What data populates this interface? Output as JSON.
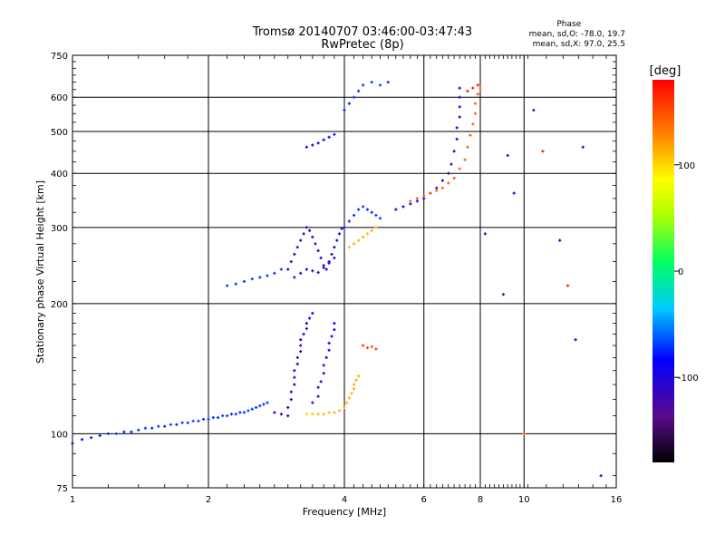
{
  "chart_data": {
    "type": "scatter",
    "title": "Tromsø 20140707 03:46:00-03:47:43",
    "subtitle": "RwPretec (8p)",
    "xlabel": "Frequency [MHz]",
    "ylabel": "Stationary phase Virtual Height [km]",
    "x_scale": "log",
    "y_scale": "log",
    "xlim": [
      1,
      16
    ],
    "ylim": [
      75,
      750
    ],
    "x_ticks": [
      1,
      2,
      4,
      6,
      8,
      10,
      16
    ],
    "x_tick_labels": [
      "1",
      "2",
      "4",
      "6",
      "8",
      "10",
      "16"
    ],
    "y_ticks": [
      75,
      100,
      200,
      300,
      400,
      500,
      600,
      750
    ],
    "y_tick_labels": [
      "75",
      "100",
      "200",
      "300",
      "400",
      "500",
      "600",
      "750"
    ],
    "grid": true,
    "stats": {
      "header": "Phase",
      "line_o": "mean, sd,O: -78.0, 19.7",
      "line_x": "mean, sd,X:  97.0, 25.5"
    },
    "colorbar": {
      "label": "[deg]",
      "range": [
        -180,
        180
      ],
      "ticks": [
        100,
        0,
        -100
      ],
      "tick_labels": [
        "100",
        "0",
        "-100"
      ],
      "colormap": "rainbow"
    },
    "series": [
      {
        "points": [
          [
            1.0,
            95,
            -80
          ],
          [
            1.05,
            97,
            -85
          ],
          [
            1.1,
            98,
            -75
          ],
          [
            1.15,
            99,
            -82
          ],
          [
            1.2,
            100,
            -78
          ],
          [
            1.25,
            100,
            -70
          ],
          [
            1.3,
            101,
            -76
          ],
          [
            1.35,
            101,
            -80
          ],
          [
            1.4,
            102,
            -74
          ],
          [
            1.45,
            103,
            -72
          ],
          [
            1.5,
            103,
            -78
          ],
          [
            1.55,
            104,
            -70
          ],
          [
            1.6,
            104,
            -76
          ],
          [
            1.65,
            105,
            -68
          ],
          [
            1.7,
            105,
            -74
          ],
          [
            1.75,
            106,
            -70
          ],
          [
            1.8,
            106,
            -72
          ],
          [
            1.85,
            107,
            -66
          ],
          [
            1.9,
            107,
            -70
          ],
          [
            1.95,
            108,
            -75
          ],
          [
            2.0,
            108,
            -72
          ],
          [
            2.05,
            109,
            -70
          ],
          [
            2.1,
            109,
            -74
          ],
          [
            2.15,
            110,
            -68
          ],
          [
            2.2,
            110,
            -72
          ],
          [
            2.25,
            111,
            -76
          ],
          [
            2.3,
            111,
            -70
          ],
          [
            2.35,
            112,
            -74
          ],
          [
            2.4,
            112,
            -72
          ],
          [
            2.45,
            113,
            -70
          ],
          [
            2.5,
            114,
            -75
          ],
          [
            2.55,
            115,
            -73
          ],
          [
            2.6,
            116,
            -71
          ],
          [
            2.65,
            117,
            -74
          ],
          [
            2.7,
            118,
            -76
          ],
          [
            2.8,
            112,
            -85
          ],
          [
            2.9,
            111,
            -90
          ],
          [
            3.0,
            110,
            -95
          ],
          [
            3.0,
            115,
            -92
          ],
          [
            3.05,
            120,
            -95
          ],
          [
            3.05,
            125,
            -100
          ],
          [
            3.1,
            130,
            -98
          ],
          [
            3.1,
            135,
            -102
          ],
          [
            3.1,
            140,
            -96
          ],
          [
            3.15,
            145,
            -100
          ],
          [
            3.15,
            150,
            -104
          ],
          [
            3.2,
            155,
            -98
          ],
          [
            3.2,
            160,
            -102
          ],
          [
            3.2,
            165,
            -95
          ],
          [
            3.25,
            170,
            -100
          ],
          [
            3.3,
            175,
            -104
          ],
          [
            3.3,
            180,
            -98
          ],
          [
            3.35,
            185,
            -92
          ],
          [
            3.4,
            190,
            -96
          ],
          [
            3.4,
            118,
            -110
          ],
          [
            3.5,
            122,
            -105
          ],
          [
            3.5,
            128,
            -108
          ],
          [
            3.55,
            132,
            -112
          ],
          [
            3.6,
            138,
            -106
          ],
          [
            3.6,
            144,
            -110
          ],
          [
            3.65,
            150,
            -104
          ],
          [
            3.7,
            156,
            -108
          ],
          [
            3.7,
            162,
            -100
          ],
          [
            3.75,
            168,
            -96
          ],
          [
            3.8,
            174,
            -90
          ],
          [
            3.8,
            180,
            -94
          ],
          [
            3.3,
            111,
            100
          ],
          [
            3.4,
            111,
            105
          ],
          [
            3.5,
            111,
            110
          ],
          [
            3.6,
            111,
            112
          ],
          [
            3.7,
            112,
            108
          ],
          [
            3.8,
            112,
            115
          ],
          [
            3.9,
            113,
            110
          ],
          [
            4.0,
            115,
            112
          ],
          [
            4.05,
            118,
            115
          ],
          [
            4.1,
            121,
            110
          ],
          [
            4.15,
            124,
            114
          ],
          [
            4.2,
            127,
            116
          ],
          [
            4.2,
            130,
            112
          ],
          [
            4.25,
            133,
            118
          ],
          [
            4.3,
            136,
            114
          ],
          [
            4.4,
            160,
            150
          ],
          [
            4.5,
            158,
            152
          ],
          [
            4.6,
            159,
            148
          ],
          [
            4.7,
            157,
            150
          ],
          [
            2.2,
            220,
            -70
          ],
          [
            2.3,
            222,
            -72
          ],
          [
            2.4,
            225,
            -74
          ],
          [
            2.5,
            228,
            -70
          ],
          [
            2.6,
            230,
            -76
          ],
          [
            2.7,
            232,
            -72
          ],
          [
            2.8,
            235,
            -74
          ],
          [
            2.9,
            240,
            -70
          ],
          [
            3.0,
            240,
            -105
          ],
          [
            3.05,
            250,
            -108
          ],
          [
            3.1,
            260,
            -110
          ],
          [
            3.15,
            270,
            -104
          ],
          [
            3.2,
            280,
            -100
          ],
          [
            3.25,
            290,
            -106
          ],
          [
            3.3,
            300,
            -102
          ],
          [
            3.35,
            295,
            -108
          ],
          [
            3.4,
            285,
            -110
          ],
          [
            3.45,
            275,
            -104
          ],
          [
            3.5,
            265,
            -100
          ],
          [
            3.55,
            255,
            -106
          ],
          [
            3.6,
            245,
            -108
          ],
          [
            3.65,
            240,
            -102
          ],
          [
            3.7,
            250,
            -100
          ],
          [
            3.75,
            260,
            -98
          ],
          [
            3.8,
            270,
            -94
          ],
          [
            3.85,
            280,
            -90
          ],
          [
            3.9,
            290,
            -86
          ],
          [
            3.95,
            298,
            -82
          ],
          [
            3.1,
            230,
            -115
          ],
          [
            3.2,
            235,
            -112
          ],
          [
            3.3,
            240,
            -110
          ],
          [
            3.4,
            238,
            -114
          ],
          [
            3.5,
            236,
            -108
          ],
          [
            3.6,
            242,
            -106
          ],
          [
            3.7,
            248,
            -104
          ],
          [
            3.8,
            255,
            -100
          ],
          [
            4.0,
            300,
            -80
          ],
          [
            4.1,
            310,
            -76
          ],
          [
            4.2,
            320,
            -74
          ],
          [
            4.3,
            330,
            -72
          ],
          [
            4.4,
            335,
            -70
          ],
          [
            4.5,
            330,
            -74
          ],
          [
            4.6,
            325,
            -76
          ],
          [
            4.7,
            320,
            -72
          ],
          [
            4.8,
            315,
            -70
          ],
          [
            4.1,
            270,
            110
          ],
          [
            4.2,
            275,
            114
          ],
          [
            4.3,
            280,
            112
          ],
          [
            4.4,
            285,
            116
          ],
          [
            4.5,
            290,
            110
          ],
          [
            4.6,
            295,
            114
          ],
          [
            4.7,
            300,
            112
          ],
          [
            3.3,
            460,
            -100
          ],
          [
            3.4,
            465,
            -96
          ],
          [
            3.5,
            470,
            -92
          ],
          [
            3.6,
            478,
            -88
          ],
          [
            3.7,
            485,
            -84
          ],
          [
            3.8,
            492,
            -80
          ],
          [
            4.0,
            560,
            -80
          ],
          [
            4.1,
            580,
            -76
          ],
          [
            4.2,
            600,
            -74
          ],
          [
            4.3,
            620,
            -72
          ],
          [
            4.4,
            640,
            -70
          ],
          [
            4.6,
            650,
            -72
          ],
          [
            4.8,
            640,
            -70
          ],
          [
            5.0,
            650,
            -74
          ],
          [
            5.2,
            330,
            -90
          ],
          [
            5.4,
            335,
            -92
          ],
          [
            5.6,
            340,
            -94
          ],
          [
            5.8,
            345,
            -96
          ],
          [
            6.0,
            350,
            -98
          ],
          [
            6.2,
            360,
            -100
          ],
          [
            6.4,
            370,
            -102
          ],
          [
            6.6,
            385,
            -104
          ],
          [
            6.8,
            400,
            -106
          ],
          [
            6.9,
            420,
            -108
          ],
          [
            7.0,
            450,
            -110
          ],
          [
            7.1,
            480,
            -108
          ],
          [
            7.1,
            510,
            -106
          ],
          [
            7.2,
            540,
            -104
          ],
          [
            7.2,
            570,
            -100
          ],
          [
            7.2,
            600,
            -98
          ],
          [
            7.2,
            630,
            -96
          ],
          [
            5.6,
            345,
            140
          ],
          [
            5.8,
            350,
            142
          ],
          [
            6.0,
            355,
            144
          ],
          [
            6.2,
            360,
            146
          ],
          [
            6.4,
            365,
            140
          ],
          [
            6.6,
            370,
            142
          ],
          [
            6.8,
            380,
            144
          ],
          [
            7.0,
            390,
            146
          ],
          [
            7.2,
            410,
            140
          ],
          [
            7.4,
            430,
            142
          ],
          [
            7.5,
            460,
            144
          ],
          [
            7.6,
            490,
            146
          ],
          [
            7.7,
            520,
            140
          ],
          [
            7.8,
            550,
            142
          ],
          [
            7.8,
            580,
            144
          ],
          [
            7.9,
            610,
            146
          ],
          [
            8.0,
            630,
            140
          ],
          [
            7.5,
            620,
            170
          ],
          [
            7.7,
            630,
            165
          ],
          [
            7.9,
            640,
            168
          ],
          [
            9.2,
            440,
            -110
          ],
          [
            9.5,
            360,
            -100
          ],
          [
            10.5,
            560,
            -120
          ],
          [
            11.0,
            450,
            170
          ],
          [
            12.0,
            280,
            -90
          ],
          [
            13.5,
            460,
            -110
          ],
          [
            12.5,
            220,
            170
          ],
          [
            14.8,
            80,
            -130
          ],
          [
            9.0,
            210,
            -140
          ],
          [
            13.0,
            165,
            -100
          ],
          [
            10.0,
            100,
            140
          ],
          [
            8.2,
            290,
            -110
          ]
        ]
      }
    ]
  }
}
